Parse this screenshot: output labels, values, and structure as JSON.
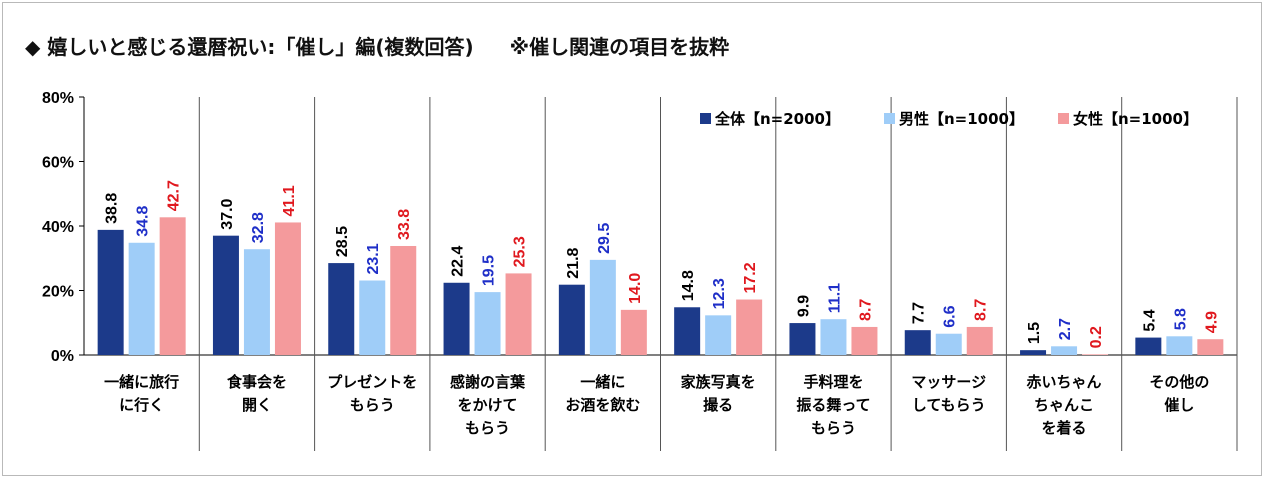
{
  "title_main": "◆ 嬉しいと感じる還暦祝い:「催し」編(複数回答)",
  "title_note": "※催し関連の項目を抜粋",
  "chart_data": {
    "type": "bar",
    "ylim": [
      0,
      80
    ],
    "yticks": [
      "0%",
      "20%",
      "40%",
      "60%",
      "80%"
    ],
    "categories": [
      [
        "一緒に旅行",
        "に行く"
      ],
      [
        "食事会を",
        "開く"
      ],
      [
        "プレゼントを",
        "もらう"
      ],
      [
        "感謝の言葉",
        "をかけて",
        "もらう"
      ],
      [
        "一緒に",
        "お酒を飲む"
      ],
      [
        "家族写真を",
        "撮る"
      ],
      [
        "手料理を",
        "振る舞って",
        "もらう"
      ],
      [
        "マッサージ",
        "してもらう"
      ],
      [
        "赤いちゃん",
        "ちゃんこ",
        "を着る"
      ],
      [
        "その他の",
        "催し"
      ]
    ],
    "series": [
      {
        "name": "全体【n=2000】",
        "color": "#1c3a8a",
        "label_color": "#000000",
        "values": [
          38.8,
          37.0,
          28.5,
          22.4,
          21.8,
          14.8,
          9.9,
          7.7,
          1.5,
          5.4
        ],
        "labels": [
          "38.8",
          "37.0",
          "28.5",
          "22.4",
          "21.8",
          "14.8",
          "9.9",
          "7.7",
          "1.5",
          "5.4"
        ]
      },
      {
        "name": "男性【n=1000】",
        "color": "#9fcdf8",
        "label_color": "#1f2fc8",
        "values": [
          34.8,
          32.8,
          23.1,
          19.5,
          29.5,
          12.3,
          11.1,
          6.6,
          2.7,
          5.8
        ],
        "labels": [
          "34.8",
          "32.8",
          "23.1",
          "19.5",
          "29.5",
          "12.3",
          "11.1",
          "6.6",
          "2.7",
          "5.8"
        ]
      },
      {
        "name": "女性【n=1000】",
        "color": "#f49a9c",
        "label_color": "#e0181e",
        "values": [
          42.7,
          41.1,
          33.8,
          25.3,
          14.0,
          17.2,
          8.7,
          8.7,
          0.2,
          4.9
        ],
        "labels": [
          "42.7",
          "41.1",
          "33.8",
          "25.3",
          "14.0",
          "17.2",
          "8.7",
          "8.7",
          "0.2",
          "4.9"
        ]
      }
    ],
    "legend_position": "top-right",
    "grid": "vertical category separators"
  }
}
